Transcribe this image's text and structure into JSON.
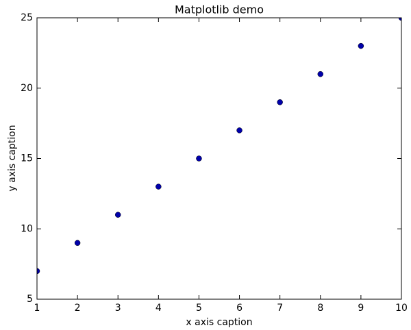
{
  "chart_data": {
    "type": "scatter",
    "title": "Matplotlib demo",
    "x_label": "x axis caption",
    "y_label": "y axis caption",
    "x": [
      1,
      2,
      3,
      4,
      5,
      6,
      7,
      8,
      9,
      10
    ],
    "values": [
      7,
      9,
      11,
      13,
      15,
      17,
      19,
      21,
      23,
      25
    ],
    "color": "#0000aa",
    "xlim": [
      1,
      10
    ],
    "ylim": [
      5,
      25
    ],
    "xticks": [
      1,
      2,
      3,
      4,
      5,
      6,
      7,
      8,
      9,
      10
    ],
    "yticks": [
      5,
      10,
      15,
      20,
      25
    ],
    "grid": false
  }
}
